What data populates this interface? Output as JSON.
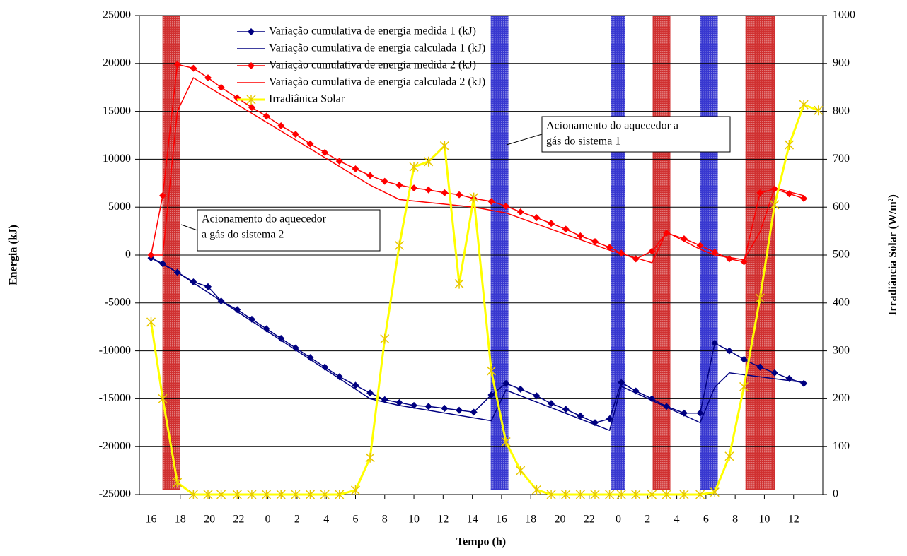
{
  "chart_data": {
    "type": "line",
    "x_label": "Tempo (h)",
    "y_label": "Energia (kJ)",
    "y2_label": "Irradiância Solar (W/m²)",
    "xlim": [
      -0.8,
      46
    ],
    "xticks": [
      {
        "value": 0,
        "label": "16"
      },
      {
        "value": 2,
        "label": "18"
      },
      {
        "value": 4,
        "label": "20"
      },
      {
        "value": 6,
        "label": "22"
      },
      {
        "value": 8,
        "label": "0"
      },
      {
        "value": 10,
        "label": "2"
      },
      {
        "value": 12,
        "label": "4"
      },
      {
        "value": 14,
        "label": "6"
      },
      {
        "value": 16,
        "label": "8"
      },
      {
        "value": 18,
        "label": "10"
      },
      {
        "value": 20,
        "label": "12"
      },
      {
        "value": 22,
        "label": "14"
      },
      {
        "value": 24,
        "label": "16"
      },
      {
        "value": 26,
        "label": "18"
      },
      {
        "value": 28,
        "label": "20"
      },
      {
        "value": 30,
        "label": "22"
      },
      {
        "value": 32,
        "label": "0"
      },
      {
        "value": 34,
        "label": "2"
      },
      {
        "value": 36,
        "label": "4"
      },
      {
        "value": 38,
        "label": "6"
      },
      {
        "value": 40,
        "label": "8"
      },
      {
        "value": 42,
        "label": "10"
      },
      {
        "value": 44,
        "label": "12"
      }
    ],
    "ylim": [
      -25000,
      25000
    ],
    "yticks": [
      -25000,
      -20000,
      -15000,
      -10000,
      -5000,
      0,
      5000,
      10000,
      15000,
      20000,
      25000
    ],
    "y2lim": [
      0,
      1000
    ],
    "y2ticks": [
      0,
      100,
      200,
      300,
      400,
      500,
      600,
      700,
      800,
      900,
      1000
    ],
    "grid": true,
    "legend": "top",
    "shaded_periods": [
      {
        "start": 0.78,
        "end": 1.99,
        "color": "#d03030"
      },
      {
        "start": 23.26,
        "end": 24.47,
        "color": "#3838d0"
      },
      {
        "start": 31.49,
        "end": 32.46,
        "color": "#3838d0"
      },
      {
        "start": 34.35,
        "end": 35.56,
        "color": "#d03030"
      },
      {
        "start": 37.6,
        "end": 38.81,
        "color": "#3838d0"
      },
      {
        "start": 40.7,
        "end": 42.73,
        "color": "#d03030"
      }
    ],
    "annotations": [
      {
        "lines": [
          "Acionamento do aquecedor a",
          "gás do sistema 1"
        ]
      },
      {
        "lines": [
          "Acionamento do aquecedor",
          "a gás do sistema 2"
        ]
      }
    ],
    "series": [
      {
        "name": "Variação cumulativa de energia medida 1 (kJ)",
        "color": "#000080",
        "marker": "diamond",
        "x": [
          0,
          0.8,
          1.8,
          2.9,
          3.9,
          4.8,
          5.9,
          6.9,
          7.9,
          8.9,
          9.9,
          10.9,
          11.9,
          12.9,
          14,
          15,
          16,
          17,
          18,
          19,
          20.1,
          21.1,
          22.1,
          23.3,
          24.3,
          25.3,
          26.4,
          27.4,
          28.4,
          29.4,
          30.4,
          31.4,
          32.2,
          33.2,
          34.3,
          35.3,
          36.5,
          37.6,
          38.6,
          39.6,
          40.6,
          41.7,
          42.7,
          43.7,
          44.7
        ],
        "values": [
          -300,
          -900,
          -1800,
          -2800,
          -3300,
          -4800,
          -5700,
          -6700,
          -7700,
          -8700,
          -9700,
          -10700,
          -11700,
          -12700,
          -13600,
          -14400,
          -15100,
          -15400,
          -15700,
          -15800,
          -16000,
          -16200,
          -16400,
          -14600,
          -13400,
          -14000,
          -14700,
          -15500,
          -16100,
          -16800,
          -17500,
          -17100,
          -13300,
          -14200,
          -15000,
          -15800,
          -16500,
          -16500,
          -9200,
          -10000,
          -10900,
          -11700,
          -12300,
          -12900,
          -13400
        ]
      },
      {
        "name": "Variação cumulativa de energia calculada 1 (kJ)",
        "color": "#000080",
        "marker": "none",
        "x": [
          0,
          1.8,
          15,
          17,
          23.3,
          24.3,
          31.4,
          32.2,
          37.6,
          38.6,
          39.6,
          44.7
        ],
        "values": [
          -300,
          -1800,
          -15000,
          -15700,
          -17300,
          -14100,
          -18300,
          -13700,
          -17500,
          -13800,
          -12300,
          -13300
        ]
      },
      {
        "name": "Variação cumulativa de energia medida 2 (kJ)",
        "color": "#ff0000",
        "marker": "diamond",
        "x": [
          0,
          0.8,
          1.8,
          2.9,
          3.9,
          4.8,
          5.9,
          6.9,
          7.9,
          8.9,
          9.9,
          10.9,
          11.9,
          12.9,
          14,
          15,
          16,
          17,
          18,
          19,
          20.1,
          21.1,
          22.1,
          23.3,
          24.3,
          25.3,
          26.4,
          27.4,
          28.4,
          29.4,
          30.4,
          31.4,
          32.2,
          33.2,
          34.3,
          35.3,
          36.5,
          37.6,
          38.6,
          39.6,
          40.6,
          41.7,
          42.7,
          43.7,
          44.7
        ],
        "values": [
          0,
          6200,
          19900,
          19500,
          18500,
          17500,
          16400,
          15400,
          14500,
          13500,
          12600,
          11600,
          10700,
          9800,
          9000,
          8300,
          7700,
          7300,
          7000,
          6800,
          6500,
          6300,
          5900,
          5600,
          5100,
          4500,
          3900,
          3300,
          2700,
          2000,
          1400,
          800,
          200,
          -400,
          400,
          2300,
          1700,
          1000,
          300,
          -400,
          -700,
          6500,
          6900,
          6400,
          5900
        ]
      },
      {
        "name": "Variação cumulativa de energia calculada 2 (kJ)",
        "color": "#ff0000",
        "marker": "none",
        "x": [
          0,
          0.8,
          1.8,
          2.9,
          15,
          17,
          22.1,
          24.3,
          31.4,
          33.2,
          34.3,
          35.3,
          37.6,
          38.6,
          40.6,
          41.7,
          42.7,
          44.7
        ],
        "values": [
          0,
          0,
          15000,
          18500,
          7300,
          5800,
          5000,
          4400,
          500,
          -300,
          -800,
          2400,
          600,
          0,
          -500,
          2400,
          7000,
          6200
        ]
      },
      {
        "name": "Irradiânica Solar",
        "color": "#ffff00",
        "marker": "asterisk",
        "axis": "y2",
        "x": [
          0,
          0.8,
          1.8,
          2.9,
          3.9,
          4.8,
          5.9,
          6.9,
          7.9,
          8.9,
          9.9,
          10.9,
          11.9,
          12.9,
          14,
          15,
          16,
          17,
          18,
          19,
          20.1,
          21.1,
          22.1,
          23.3,
          24.3,
          25.3,
          26.4,
          27.4,
          28.4,
          29.4,
          30.4,
          31.4,
          32.2,
          33.2,
          34.3,
          35.3,
          36.5,
          37.6,
          38.6,
          39.6,
          40.6,
          41.7,
          42.7,
          43.7,
          44.7,
          45.7
        ],
        "values": [
          360,
          200,
          25,
          0,
          0,
          0,
          0,
          0,
          0,
          0,
          0,
          0,
          0,
          0,
          9,
          77,
          325,
          520,
          684,
          695,
          728,
          440,
          620,
          258,
          110,
          50,
          10,
          0,
          0,
          0,
          0,
          0,
          0,
          0,
          0,
          0,
          0,
          0,
          5,
          80,
          225,
          410,
          605,
          730,
          814,
          802
        ]
      }
    ]
  }
}
